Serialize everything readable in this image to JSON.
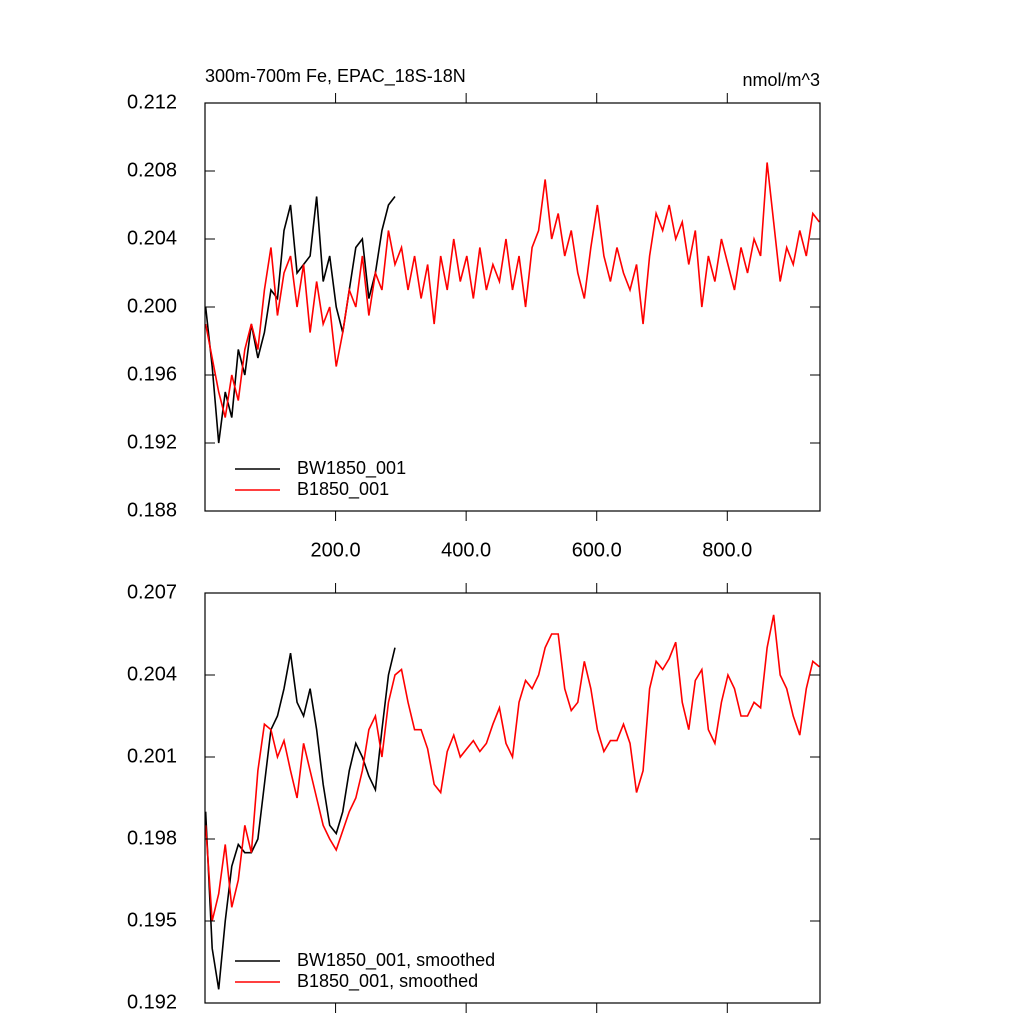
{
  "chart_data": [
    {
      "type": "line",
      "title": "300m-700m Fe, EPAC_18S-18N",
      "units": "nmol/m^3",
      "xlim": [
        0,
        942
      ],
      "ylim": [
        0.188,
        0.212
      ],
      "xticks": [
        {
          "value": 200,
          "label": "200.0"
        },
        {
          "value": 400,
          "label": "400.0"
        },
        {
          "value": 600,
          "label": "600.0"
        },
        {
          "value": 800,
          "label": "800.0"
        }
      ],
      "yticks": [
        0.188,
        0.192,
        0.196,
        {
          "value": 0.2,
          "label": "0.200"
        },
        0.204,
        0.208,
        0.212
      ],
      "xtick_labels": true,
      "legend": "lower left",
      "series": [
        {
          "name": "BW1850_001",
          "color": "#000000",
          "x": [
            1,
            11,
            21,
            31,
            41,
            51,
            61,
            71,
            81,
            91,
            101,
            111,
            121,
            131,
            141,
            151,
            161,
            171,
            181,
            191,
            201,
            211,
            221,
            231,
            241,
            251,
            261,
            271,
            281,
            291
          ],
          "values": [
            0.2,
            0.1965,
            0.192,
            0.195,
            0.1935,
            0.1975,
            0.196,
            0.199,
            0.197,
            0.1985,
            0.201,
            0.2005,
            0.2045,
            0.206,
            0.202,
            0.2025,
            0.203,
            0.2065,
            0.2015,
            0.203,
            0.2,
            0.1985,
            0.201,
            0.2035,
            0.204,
            0.2005,
            0.202,
            0.2045,
            0.206,
            0.2065
          ]
        },
        {
          "name": "B1850_001",
          "color": "#ff0000",
          "x": [
            1,
            11,
            21,
            31,
            41,
            51,
            61,
            71,
            81,
            91,
            101,
            111,
            121,
            131,
            141,
            151,
            161,
            171,
            181,
            191,
            201,
            211,
            221,
            231,
            241,
            251,
            261,
            271,
            281,
            291,
            301,
            311,
            321,
            331,
            341,
            351,
            361,
            371,
            381,
            391,
            401,
            411,
            421,
            431,
            441,
            451,
            461,
            471,
            481,
            491,
            501,
            511,
            521,
            531,
            541,
            551,
            561,
            571,
            581,
            591,
            601,
            611,
            621,
            631,
            641,
            651,
            661,
            671,
            681,
            691,
            701,
            711,
            721,
            731,
            741,
            751,
            761,
            771,
            781,
            791,
            801,
            811,
            821,
            831,
            841,
            851,
            861,
            871,
            881,
            891,
            901,
            911,
            921,
            931,
            941
          ],
          "values": [
            0.199,
            0.197,
            0.195,
            0.1935,
            0.196,
            0.1945,
            0.1975,
            0.199,
            0.1975,
            0.201,
            0.2035,
            0.1995,
            0.202,
            0.203,
            0.2,
            0.2025,
            0.1985,
            0.2015,
            0.199,
            0.2,
            0.1965,
            0.1985,
            0.201,
            0.2,
            0.203,
            0.1995,
            0.202,
            0.201,
            0.2045,
            0.2025,
            0.2035,
            0.201,
            0.203,
            0.2005,
            0.2025,
            0.199,
            0.203,
            0.201,
            0.204,
            0.2015,
            0.203,
            0.2005,
            0.2035,
            0.201,
            0.2025,
            0.2015,
            0.204,
            0.201,
            0.203,
            0.2,
            0.2035,
            0.2045,
            0.2075,
            0.204,
            0.2055,
            0.203,
            0.2045,
            0.202,
            0.2005,
            0.2035,
            0.206,
            0.203,
            0.2015,
            0.2035,
            0.202,
            0.201,
            0.2025,
            0.199,
            0.203,
            0.2055,
            0.2045,
            0.206,
            0.204,
            0.205,
            0.2025,
            0.2045,
            0.2,
            0.203,
            0.2015,
            0.204,
            0.2025,
            0.201,
            0.2035,
            0.202,
            0.204,
            0.203,
            0.2085,
            0.205,
            0.2015,
            0.2035,
            0.2025,
            0.2045,
            0.203,
            0.2055,
            0.205
          ]
        }
      ]
    },
    {
      "type": "line",
      "xlim": [
        0,
        942
      ],
      "ylim": [
        0.192,
        0.207
      ],
      "xticks": [
        200,
        400,
        600,
        800
      ],
      "yticks": [
        0.192,
        0.195,
        0.198,
        0.201,
        0.204,
        0.207
      ],
      "xtick_labels": false,
      "legend": "lower left",
      "series": [
        {
          "name": "BW1850_001, smoothed",
          "color": "#000000",
          "x": [
            1,
            11,
            21,
            31,
            41,
            51,
            61,
            71,
            81,
            91,
            101,
            111,
            121,
            131,
            141,
            151,
            161,
            171,
            181,
            191,
            201,
            211,
            221,
            231,
            241,
            251,
            261,
            271,
            281,
            291
          ],
          "values": [
            0.199,
            0.194,
            0.1925,
            0.195,
            0.197,
            0.1978,
            0.1975,
            0.1975,
            0.198,
            0.2,
            0.202,
            0.2025,
            0.2035,
            0.2048,
            0.203,
            0.2025,
            0.2035,
            0.202,
            0.2,
            0.1985,
            0.1982,
            0.199,
            0.2005,
            0.2015,
            0.201,
            0.2003,
            0.1998,
            0.202,
            0.204,
            0.205
          ]
        },
        {
          "name": "B1850_001, smoothed",
          "color": "#ff0000",
          "x": [
            1,
            11,
            21,
            31,
            41,
            51,
            61,
            71,
            81,
            91,
            101,
            111,
            121,
            131,
            141,
            151,
            161,
            171,
            181,
            191,
            201,
            211,
            221,
            231,
            241,
            251,
            261,
            271,
            281,
            291,
            301,
            311,
            321,
            331,
            341,
            351,
            361,
            371,
            381,
            391,
            401,
            411,
            421,
            431,
            441,
            451,
            461,
            471,
            481,
            491,
            501,
            511,
            521,
            531,
            541,
            551,
            561,
            571,
            581,
            591,
            601,
            611,
            621,
            631,
            641,
            651,
            661,
            671,
            681,
            691,
            701,
            711,
            721,
            731,
            741,
            751,
            761,
            771,
            781,
            791,
            801,
            811,
            821,
            831,
            841,
            851,
            861,
            871,
            881,
            891,
            901,
            911,
            921,
            931,
            941
          ],
          "values": [
            0.1985,
            0.195,
            0.196,
            0.1978,
            0.1955,
            0.1965,
            0.1985,
            0.1975,
            0.2005,
            0.2022,
            0.202,
            0.201,
            0.2016,
            0.2005,
            0.1995,
            0.2015,
            0.2005,
            0.1995,
            0.1985,
            0.198,
            0.1976,
            0.1983,
            0.199,
            0.1995,
            0.2005,
            0.202,
            0.2025,
            0.201,
            0.203,
            0.204,
            0.2042,
            0.203,
            0.202,
            0.202,
            0.2013,
            0.2,
            0.1997,
            0.2012,
            0.2018,
            0.201,
            0.2013,
            0.2016,
            0.2012,
            0.2015,
            0.2022,
            0.2028,
            0.2015,
            0.201,
            0.203,
            0.2038,
            0.2035,
            0.204,
            0.205,
            0.2055,
            0.2055,
            0.2035,
            0.2027,
            0.203,
            0.2045,
            0.2035,
            0.202,
            0.2012,
            0.2016,
            0.2016,
            0.2022,
            0.2015,
            0.1997,
            0.2005,
            0.2035,
            0.2045,
            0.2042,
            0.2046,
            0.2052,
            0.203,
            0.202,
            0.2038,
            0.2042,
            0.202,
            0.2015,
            0.203,
            0.204,
            0.2035,
            0.2025,
            0.2025,
            0.203,
            0.2028,
            0.205,
            0.2062,
            0.204,
            0.2035,
            0.2025,
            0.2018,
            0.2035,
            0.2045,
            0.2043
          ]
        }
      ]
    }
  ]
}
